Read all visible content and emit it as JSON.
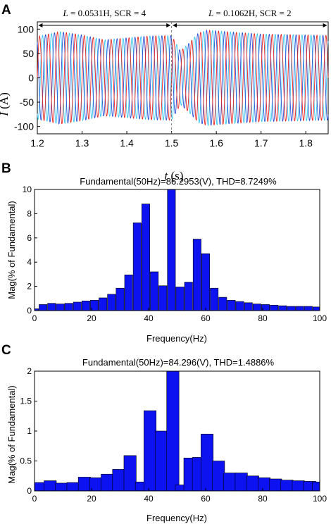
{
  "chart_data": [
    {
      "panel": "A",
      "type": "line",
      "xlabel_var": "t",
      "xlabel_unit": " (s)",
      "ylabel_var": "I",
      "ylabel_unit": " (A)",
      "xlim": [
        1.2,
        1.85
      ],
      "ylim": [
        -115,
        115
      ],
      "xticks": [
        1.2,
        1.3,
        1.4,
        1.5,
        1.6,
        1.7,
        1.8
      ],
      "yticks": [
        100,
        50,
        0,
        -50,
        -100
      ],
      "frequency_hz": 50,
      "phases": [
        "red",
        "blue",
        "cyan"
      ],
      "colors": {
        "phase_a": "#e8251f",
        "phase_b": "#2b4fd6",
        "phase_c": "#39c6f0"
      },
      "envelope": {
        "t": [
          1.2,
          1.25,
          1.3,
          1.35,
          1.4,
          1.45,
          1.5,
          1.52,
          1.54,
          1.56,
          1.58,
          1.62,
          1.7,
          1.8,
          1.85
        ],
        "peak": [
          85,
          95,
          88,
          78,
          82,
          86,
          87,
          55,
          72,
          92,
          98,
          95,
          90,
          88,
          87
        ]
      },
      "annotations": [
        {
          "text": "L = 0.0531H, SCR = 4",
          "from": 1.2,
          "to": 1.5
        },
        {
          "text": "L = 0.1062H, SCR = 2",
          "from": 1.5,
          "to": 1.85
        }
      ]
    },
    {
      "panel": "B",
      "type": "bar",
      "title": "Fundamental(50Hz)=86.2953(V), THD=8.7249%",
      "xlabel": "Frequency(Hz)",
      "ylabel": "Mag(% of Fundamental)",
      "xlim": [
        0,
        100
      ],
      "ylim": [
        0,
        10
      ],
      "xticks": [
        0,
        20,
        40,
        60,
        80,
        100
      ],
      "yticks": [
        0,
        2,
        4,
        6,
        8,
        10
      ],
      "bar_width": 2.8,
      "x": [
        0,
        3,
        6,
        9,
        12,
        15,
        18,
        21,
        24,
        27,
        30,
        33,
        36,
        39,
        42,
        45,
        48,
        51,
        54,
        57,
        60,
        63,
        66,
        69,
        72,
        75,
        78,
        81,
        84,
        87,
        90,
        93,
        96,
        99
      ],
      "values": [
        0.15,
        0.5,
        0.6,
        0.55,
        0.6,
        0.7,
        0.8,
        0.85,
        1.05,
        1.35,
        1.85,
        2.95,
        7.25,
        8.8,
        3.2,
        2.05,
        10.0,
        1.95,
        2.35,
        5.9,
        4.7,
        1.85,
        1.1,
        0.85,
        0.75,
        0.65,
        0.55,
        0.5,
        0.45,
        0.4,
        0.35,
        0.35,
        0.35,
        0.3
      ],
      "color": "#0c13f0"
    },
    {
      "panel": "C",
      "type": "bar",
      "title": "Fundamental(50Hz)=84.296(V), THD=1.4886%",
      "xlabel": "Frequency(Hz)",
      "ylabel": "Mag(% of Fundamental)",
      "xlim": [
        0,
        100
      ],
      "ylim": [
        0,
        2
      ],
      "xticks": [
        0,
        20,
        40,
        60,
        80,
        100
      ],
      "yticks": [
        0,
        0.5,
        1,
        1.5,
        2
      ],
      "bar_width": 4.3,
      "x": [
        2,
        5.5,
        9.5,
        13.5,
        17.5,
        21.5,
        25.5,
        29.5,
        33.5,
        37.5,
        40.5,
        44.5,
        48.5,
        51.5,
        54.5,
        57.5,
        60.5,
        64.5,
        68.5,
        72.5,
        76.5,
        80.5,
        84.5,
        88.5,
        92.5,
        96.5,
        99.5
      ],
      "values": [
        0.14,
        0.17,
        0.13,
        0.14,
        0.23,
        0.22,
        0.28,
        0.36,
        0.59,
        0.15,
        1.34,
        1.0,
        2.0,
        0.1,
        0.55,
        0.56,
        0.95,
        0.5,
        0.3,
        0.3,
        0.25,
        0.22,
        0.2,
        0.18,
        0.17,
        0.16,
        0.15
      ],
      "color": "#0c13f0"
    }
  ]
}
